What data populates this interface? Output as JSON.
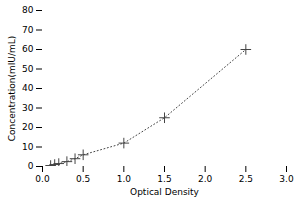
{
  "chart_data": {
    "type": "line",
    "x": [
      0.1,
      0.15,
      0.2,
      0.3,
      0.4,
      0.5,
      1.0,
      1.5,
      2.5
    ],
    "values": [
      0.5,
      1.0,
      1.5,
      2.5,
      4.0,
      6.0,
      12.0,
      25.0,
      60.0
    ],
    "xlabel": "Optical Density",
    "ylabel": "Concentration(mIU/mL)",
    "xlim": [
      0,
      3
    ],
    "ylim": [
      0,
      80
    ],
    "xticks": [
      {
        "value": 0,
        "label": "0.0"
      },
      {
        "value": 0.5,
        "label": "0.5"
      },
      {
        "value": 1,
        "label": "1.0"
      },
      {
        "value": 1.5,
        "label": "1.5"
      },
      {
        "value": 2,
        "label": "2.0"
      },
      {
        "value": 2.5,
        "label": "2.5"
      },
      {
        "value": 3,
        "label": "3.0"
      }
    ],
    "yticks": [
      0,
      10,
      20,
      30,
      40,
      50,
      60,
      70,
      80
    ],
    "color": "#444444",
    "marker": "plus",
    "line_style": "dotted"
  }
}
